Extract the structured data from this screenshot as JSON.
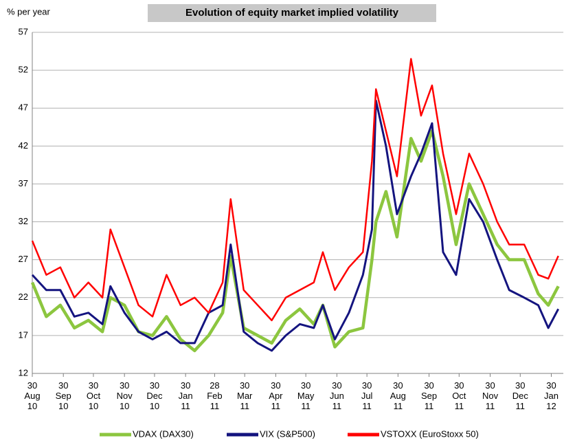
{
  "chart_data": {
    "type": "line",
    "title": "Evolution of equity market implied volatility",
    "y_label": "% per year",
    "x": [
      "2010-08-30",
      "2010-09-13",
      "2010-09-27",
      "2010-10-11",
      "2010-10-25",
      "2010-11-08",
      "2010-11-16",
      "2010-11-30",
      "2010-12-14",
      "2010-12-28",
      "2011-01-11",
      "2011-01-25",
      "2011-02-08",
      "2011-02-22",
      "2011-03-08",
      "2011-03-16",
      "2011-03-29",
      "2011-04-12",
      "2011-04-26",
      "2011-05-10",
      "2011-05-24",
      "2011-06-07",
      "2011-06-16",
      "2011-06-28",
      "2011-07-12",
      "2011-07-26",
      "2011-08-04",
      "2011-08-08",
      "2011-08-18",
      "2011-08-29",
      "2011-09-12",
      "2011-09-22",
      "2011-10-03",
      "2011-10-14",
      "2011-10-27",
      "2011-11-09",
      "2011-11-23",
      "2011-12-07",
      "2011-12-19",
      "2012-01-03",
      "2012-01-17",
      "2012-01-27",
      "2012-02-06"
    ],
    "series": [
      {
        "name": "VDAX (DAX30)",
        "color": "#8cc63f",
        "width": 4.5,
        "values": [
          24,
          19.5,
          21,
          18,
          19,
          17.5,
          22,
          21,
          17.5,
          17,
          19.5,
          16.5,
          15,
          17,
          20,
          27.5,
          18,
          17,
          16,
          19,
          20.5,
          18.5,
          21,
          15.5,
          17.5,
          18,
          27,
          32,
          36,
          30,
          43,
          40,
          44,
          38,
          29,
          37,
          33,
          29,
          27,
          27,
          22.5,
          21,
          23.5
        ]
      },
      {
        "name": "VIX (S&P500)",
        "color": "#14147f",
        "width": 3,
        "values": [
          25,
          23,
          23,
          19.5,
          20,
          18.5,
          23.5,
          20,
          17.5,
          16.5,
          17.5,
          16,
          16,
          20,
          21,
          29,
          17.5,
          16,
          15,
          17,
          18.5,
          18,
          21,
          16.5,
          20,
          25,
          31,
          48,
          42,
          33,
          38,
          41,
          45,
          28,
          25,
          35,
          32,
          27,
          23,
          22,
          21,
          18,
          20.5
        ]
      },
      {
        "name": "VSTOXX (EuroStoxx 50)",
        "color": "#ff0000",
        "width": 2.5,
        "values": [
          29.5,
          25,
          26,
          22,
          24,
          22,
          31,
          26,
          21,
          19.5,
          25,
          21,
          22,
          20,
          24,
          35,
          23,
          21,
          19,
          22,
          23,
          24,
          28,
          23,
          26,
          28,
          40,
          49.5,
          44,
          38,
          53.5,
          46,
          50,
          41,
          33,
          41,
          37,
          32,
          29,
          29,
          25,
          24.5,
          27.5
        ]
      }
    ],
    "xlim": [
      "2010-08-30",
      "2012-02-11"
    ],
    "xticks": [
      {
        "value": "2010-08-30",
        "label": "30 Aug 10"
      },
      {
        "value": "2010-09-30",
        "label": "30 Sep 10"
      },
      {
        "value": "2010-10-30",
        "label": "30 Oct 10"
      },
      {
        "value": "2010-11-30",
        "label": "30 Nov 10"
      },
      {
        "value": "2010-12-30",
        "label": "30 Dec 10"
      },
      {
        "value": "2011-01-30",
        "label": "30 Jan 11"
      },
      {
        "value": "2011-02-28",
        "label": "28 Feb 11"
      },
      {
        "value": "2011-03-30",
        "label": "30 Mar 11"
      },
      {
        "value": "2011-04-30",
        "label": "30 Apr 11"
      },
      {
        "value": "2011-05-30",
        "label": "30 May 11"
      },
      {
        "value": "2011-06-30",
        "label": "30 Jun 11"
      },
      {
        "value": "2011-07-30",
        "label": "30 Jul 11"
      },
      {
        "value": "2011-08-30",
        "label": "30 Aug 11"
      },
      {
        "value": "2011-09-30",
        "label": "30 Sep 11"
      },
      {
        "value": "2011-10-30",
        "label": "30 Oct 11"
      },
      {
        "value": "2011-11-30",
        "label": "30 Nov 11"
      },
      {
        "value": "2011-12-30",
        "label": "30 Dec 11"
      },
      {
        "value": "2012-01-30",
        "label": "30 Jan 12"
      }
    ],
    "ylim": [
      12,
      57
    ],
    "yticks": [
      12,
      17,
      22,
      27,
      32,
      37,
      42,
      47,
      52,
      57
    ],
    "grid": true,
    "legend": "bottom"
  }
}
